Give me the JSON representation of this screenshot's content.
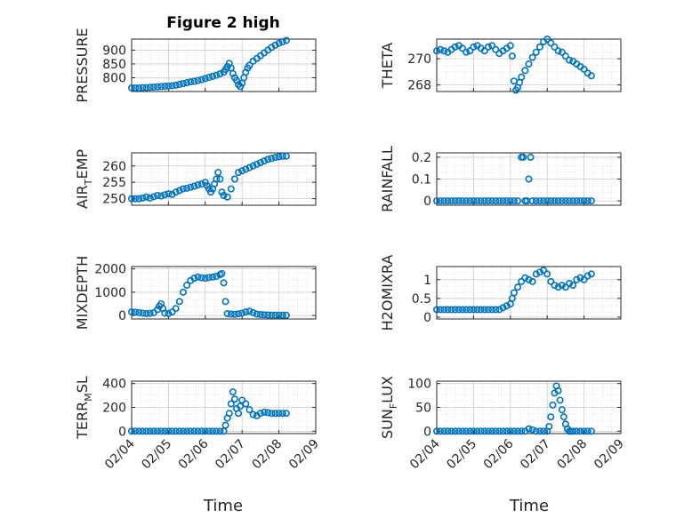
{
  "title": "Figure 2 high",
  "marker_color": "#0072BD",
  "chart_data": [
    {
      "type": "scatter",
      "name": "pressure",
      "ylabel": "PRESSURE",
      "ylim": [
        750,
        940
      ],
      "yticks": [
        800,
        850,
        900
      ],
      "yticklabels": [
        "800",
        "850",
        "900"
      ],
      "xlim": [
        0,
        5
      ],
      "xticklabels": [],
      "x": [
        0,
        0.1,
        0.2,
        0.3,
        0.4,
        0.5,
        0.6,
        0.7,
        0.8,
        0.9,
        1.0,
        1.1,
        1.2,
        1.3,
        1.4,
        1.5,
        1.6,
        1.7,
        1.8,
        1.9,
        2.0,
        2.1,
        2.2,
        2.3,
        2.4,
        2.5,
        2.55,
        2.6,
        2.65,
        2.7,
        2.75,
        2.8,
        2.85,
        2.9,
        2.95,
        3.0,
        3.05,
        3.1,
        3.15,
        3.2,
        3.3,
        3.4,
        3.5,
        3.6,
        3.7,
        3.8,
        3.9,
        4.0,
        4.1,
        4.2
      ],
      "y": [
        763,
        763,
        763,
        764,
        764,
        765,
        766,
        767,
        768,
        769,
        770,
        771,
        773,
        776,
        779,
        782,
        785,
        787,
        790,
        793,
        797,
        801,
        805,
        809,
        814,
        820,
        830,
        840,
        852,
        835,
        815,
        800,
        790,
        775,
        768,
        780,
        800,
        820,
        835,
        845,
        860,
        870,
        880,
        890,
        900,
        910,
        918,
        925,
        930,
        935
      ]
    },
    {
      "type": "scatter",
      "name": "theta",
      "ylabel": "THETA",
      "ylim": [
        267.5,
        271.5
      ],
      "yticks": [
        268,
        270
      ],
      "yticklabels": [
        "268",
        "270"
      ],
      "xlim": [
        0,
        5
      ],
      "xticklabels": [],
      "x": [
        0,
        0.1,
        0.2,
        0.3,
        0.4,
        0.5,
        0.6,
        0.7,
        0.8,
        0.9,
        1.0,
        1.1,
        1.2,
        1.3,
        1.4,
        1.5,
        1.6,
        1.7,
        1.8,
        1.9,
        2.0,
        2.05,
        2.1,
        2.15,
        2.2,
        2.25,
        2.3,
        2.4,
        2.5,
        2.6,
        2.7,
        2.8,
        2.9,
        3.0,
        3.1,
        3.2,
        3.3,
        3.4,
        3.5,
        3.6,
        3.7,
        3.8,
        3.9,
        4.0,
        4.1,
        4.2
      ],
      "y": [
        270.6,
        270.7,
        270.6,
        270.5,
        270.7,
        270.9,
        271.0,
        270.8,
        270.5,
        270.6,
        270.9,
        271.0,
        270.8,
        270.6,
        270.9,
        271.0,
        270.7,
        270.4,
        270.6,
        270.8,
        271.0,
        270.2,
        268.3,
        267.6,
        267.8,
        268.2,
        268.6,
        269.1,
        269.6,
        270.1,
        270.5,
        270.9,
        271.3,
        271.5,
        271.2,
        270.9,
        270.6,
        270.5,
        270.2,
        269.9,
        269.8,
        269.6,
        269.4,
        269.2,
        268.9,
        268.7
      ]
    },
    {
      "type": "scatter",
      "name": "air_temp",
      "ylabel": "AIR_TEMP",
      "ylim": [
        248,
        264
      ],
      "yticks": [
        250,
        255,
        260
      ],
      "yticklabels": [
        "250",
        "255",
        "260"
      ],
      "xlim": [
        0,
        5
      ],
      "xticklabels": [],
      "x": [
        0,
        0.1,
        0.2,
        0.3,
        0.4,
        0.5,
        0.6,
        0.7,
        0.8,
        0.9,
        1.0,
        1.1,
        1.2,
        1.3,
        1.4,
        1.5,
        1.6,
        1.7,
        1.8,
        1.9,
        2.0,
        2.05,
        2.1,
        2.15,
        2.2,
        2.25,
        2.3,
        2.35,
        2.4,
        2.45,
        2.5,
        2.6,
        2.7,
        2.8,
        2.9,
        3.0,
        3.1,
        3.2,
        3.3,
        3.4,
        3.5,
        3.6,
        3.7,
        3.8,
        3.9,
        4.0,
        4.1,
        4.2
      ],
      "y": [
        250,
        250,
        250,
        250.2,
        250.5,
        250.2,
        250.6,
        251,
        250.8,
        251.2,
        251.5,
        251.3,
        252,
        252.5,
        253,
        253.2,
        253.5,
        253.8,
        254.2,
        254.5,
        255,
        254,
        253,
        252,
        253,
        254.5,
        256,
        258,
        256,
        252,
        251,
        250.5,
        253,
        256,
        258,
        258.5,
        259,
        259.5,
        260,
        260.5,
        261,
        261.5,
        262,
        262.3,
        262.6,
        262.8,
        263,
        263
      ]
    },
    {
      "type": "scatter",
      "name": "rainfall",
      "ylabel": "RAINFALL",
      "ylim": [
        -0.02,
        0.22
      ],
      "yticks": [
        0,
        0.1,
        0.2
      ],
      "yticklabels": [
        "0",
        "0.1",
        "0.2"
      ],
      "xlim": [
        0,
        5
      ],
      "xticklabels": [],
      "x": [
        0,
        0.1,
        0.2,
        0.3,
        0.4,
        0.5,
        0.6,
        0.7,
        0.8,
        0.9,
        1.0,
        1.1,
        1.2,
        1.3,
        1.4,
        1.5,
        1.6,
        1.7,
        1.8,
        1.9,
        2.0,
        2.1,
        2.2,
        2.3,
        2.35,
        2.4,
        2.45,
        2.5,
        2.55,
        2.6,
        2.7,
        2.8,
        2.9,
        3.0,
        3.1,
        3.2,
        3.3,
        3.4,
        3.5,
        3.6,
        3.7,
        3.8,
        3.9,
        4.0,
        4.1,
        4.2
      ],
      "y": [
        0,
        0,
        0,
        0,
        0,
        0,
        0,
        0,
        0,
        0,
        0,
        0,
        0,
        0,
        0,
        0,
        0,
        0,
        0,
        0,
        0,
        0,
        0,
        0.2,
        0.2,
        0,
        0,
        0.1,
        0.2,
        0,
        0,
        0,
        0,
        0,
        0,
        0,
        0,
        0,
        0,
        0,
        0,
        0,
        0,
        0,
        0,
        0
      ]
    },
    {
      "type": "scatter",
      "name": "mixdepth",
      "ylabel": "MIXDEPTH",
      "ylim": [
        -150,
        2100
      ],
      "yticks": [
        0,
        1000,
        2000
      ],
      "yticklabels": [
        "0",
        "1000",
        "2000"
      ],
      "xlim": [
        0,
        5
      ],
      "xticklabels": [],
      "x": [
        0,
        0.1,
        0.2,
        0.3,
        0.4,
        0.5,
        0.6,
        0.7,
        0.75,
        0.8,
        0.85,
        0.9,
        1.0,
        1.1,
        1.2,
        1.3,
        1.4,
        1.5,
        1.6,
        1.7,
        1.8,
        1.9,
        2.0,
        2.1,
        2.2,
        2.3,
        2.4,
        2.45,
        2.5,
        2.55,
        2.6,
        2.7,
        2.8,
        2.9,
        3.0,
        3.1,
        3.2,
        3.3,
        3.4,
        3.5,
        3.6,
        3.7,
        3.8,
        3.9,
        4.0,
        4.1,
        4.2
      ],
      "y": [
        150,
        140,
        120,
        100,
        80,
        90,
        120,
        250,
        400,
        500,
        300,
        100,
        80,
        150,
        300,
        600,
        1000,
        1300,
        1500,
        1600,
        1650,
        1620,
        1600,
        1630,
        1650,
        1680,
        1750,
        1800,
        1400,
        600,
        80,
        60,
        50,
        70,
        100,
        150,
        180,
        120,
        60,
        40,
        30,
        20,
        15,
        10,
        10,
        10,
        10
      ]
    },
    {
      "type": "scatter",
      "name": "h2omixra",
      "ylabel": "H2OMIXRA",
      "ylim": [
        -0.05,
        1.35
      ],
      "yticks": [
        0,
        0.5,
        1
      ],
      "yticklabels": [
        "0",
        "0.5",
        "1"
      ],
      "xlim": [
        0,
        5
      ],
      "xticklabels": [],
      "x": [
        0,
        0.1,
        0.2,
        0.3,
        0.4,
        0.5,
        0.6,
        0.7,
        0.8,
        0.9,
        1.0,
        1.1,
        1.2,
        1.3,
        1.4,
        1.5,
        1.6,
        1.7,
        1.8,
        1.9,
        2.0,
        2.05,
        2.1,
        2.2,
        2.3,
        2.4,
        2.5,
        2.6,
        2.7,
        2.8,
        2.9,
        3.0,
        3.1,
        3.2,
        3.3,
        3.4,
        3.5,
        3.6,
        3.7,
        3.8,
        3.9,
        4.0,
        4.1,
        4.2
      ],
      "y": [
        0.2,
        0.2,
        0.2,
        0.2,
        0.2,
        0.2,
        0.2,
        0.2,
        0.2,
        0.2,
        0.2,
        0.2,
        0.2,
        0.2,
        0.2,
        0.2,
        0.2,
        0.2,
        0.25,
        0.3,
        0.35,
        0.5,
        0.65,
        0.8,
        0.95,
        1.05,
        1.0,
        0.95,
        1.15,
        1.2,
        1.25,
        1.15,
        0.95,
        0.85,
        0.8,
        0.85,
        0.8,
        0.9,
        0.85,
        1.0,
        1.05,
        1.0,
        1.1,
        1.15
      ]
    },
    {
      "type": "scatter",
      "name": "terr_msl",
      "ylabel": "TERR_MSL",
      "ylim": [
        -20,
        420
      ],
      "yticks": [
        0,
        200,
        400
      ],
      "yticklabels": [
        "0",
        "200",
        "400"
      ],
      "xlim": [
        0,
        5
      ],
      "xticks": [
        0,
        1,
        2,
        3,
        4,
        5
      ],
      "xticklabels": [
        "02/04",
        "02/05",
        "02/06",
        "02/07",
        "02/08",
        "02/09"
      ],
      "x": [
        0,
        0.1,
        0.2,
        0.3,
        0.4,
        0.5,
        0.6,
        0.7,
        0.8,
        0.9,
        1.0,
        1.1,
        1.2,
        1.3,
        1.4,
        1.5,
        1.6,
        1.7,
        1.8,
        1.9,
        2.0,
        2.1,
        2.2,
        2.3,
        2.4,
        2.5,
        2.55,
        2.6,
        2.65,
        2.7,
        2.75,
        2.8,
        2.85,
        2.9,
        2.95,
        3.0,
        3.1,
        3.2,
        3.3,
        3.4,
        3.5,
        3.6,
        3.7,
        3.8,
        3.9,
        4.0,
        4.1,
        4.2
      ],
      "y": [
        0,
        0,
        0,
        0,
        0,
        0,
        0,
        0,
        0,
        0,
        0,
        0,
        0,
        0,
        0,
        0,
        0,
        0,
        0,
        0,
        0,
        0,
        0,
        0,
        0,
        0,
        50,
        110,
        150,
        230,
        330,
        270,
        190,
        150,
        210,
        260,
        230,
        180,
        140,
        130,
        150,
        160,
        155,
        150,
        150,
        150,
        150,
        150
      ]
    },
    {
      "type": "scatter",
      "name": "sun_flux",
      "ylabel": "SUN_FLUX",
      "ylim": [
        -5,
        105
      ],
      "yticks": [
        0,
        50,
        100
      ],
      "yticklabels": [
        "0",
        "50",
        "100"
      ],
      "xlim": [
        0,
        5
      ],
      "xticks": [
        0,
        1,
        2,
        3,
        4,
        5
      ],
      "xticklabels": [
        "02/04",
        "02/05",
        "02/06",
        "02/07",
        "02/08",
        "02/09"
      ],
      "x": [
        0,
        0.1,
        0.2,
        0.3,
        0.4,
        0.5,
        0.6,
        0.7,
        0.8,
        0.9,
        1.0,
        1.1,
        1.2,
        1.3,
        1.4,
        1.5,
        1.6,
        1.7,
        1.8,
        1.9,
        2.0,
        2.1,
        2.2,
        2.3,
        2.4,
        2.5,
        2.6,
        2.7,
        2.8,
        2.9,
        3.0,
        3.05,
        3.1,
        3.15,
        3.2,
        3.25,
        3.3,
        3.35,
        3.4,
        3.45,
        3.5,
        3.55,
        3.6,
        3.65,
        3.7,
        3.8,
        3.9,
        4.0,
        4.1,
        4.2
      ],
      "y": [
        0,
        0,
        0,
        0,
        0,
        0,
        0,
        0,
        0,
        0,
        0,
        0,
        0,
        0,
        0,
        0,
        0,
        0,
        0,
        0,
        0,
        0,
        0,
        0,
        0,
        5,
        3,
        0,
        0,
        0,
        0,
        10,
        30,
        55,
        80,
        95,
        85,
        65,
        45,
        30,
        15,
        5,
        0,
        0,
        0,
        0,
        0,
        0,
        0,
        0
      ]
    }
  ],
  "xlabel": "Time"
}
